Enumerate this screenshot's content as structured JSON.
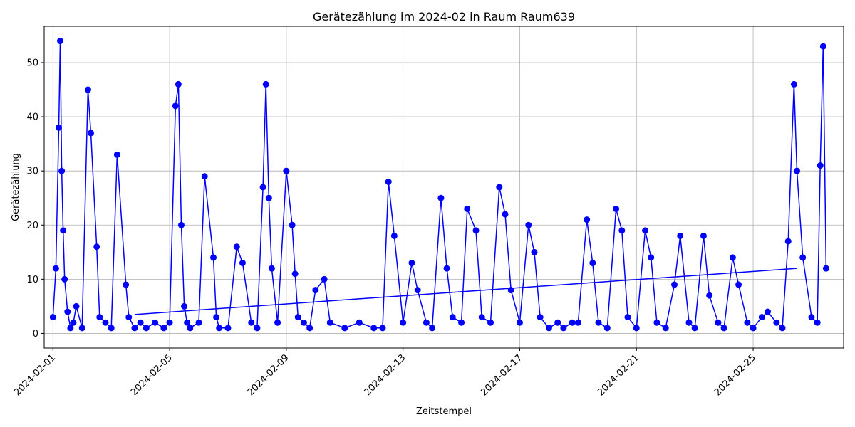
{
  "chart_data": {
    "type": "line",
    "title": "Gerätezählung im 2024-02 in Raum Raum639",
    "xlabel": "Zeitstempel",
    "ylabel": "Gerätezählung",
    "x_tick_labels": [
      "2024-02-01",
      "2024-02-05",
      "2024-02-09",
      "2024-02-13",
      "2024-02-17",
      "2024-02-21",
      "2024-02-25"
    ],
    "x_tick_days": [
      1,
      5,
      9,
      13,
      17,
      21,
      25
    ],
    "xlim_days": [
      0.7,
      28.1
    ],
    "y_ticks": [
      0,
      10,
      20,
      30,
      40,
      50
    ],
    "ylim": [
      -2.7,
      56.7
    ],
    "grid": true,
    "line_color": "#0000ff",
    "marker": "circle",
    "series": [
      {
        "x_day": [
          1.0,
          1.1,
          1.2,
          1.25,
          1.3,
          1.35,
          1.4,
          1.5,
          1.6,
          1.7,
          1.8,
          2.0,
          2.2,
          2.3,
          2.5,
          2.6,
          2.8,
          3.0,
          3.2,
          3.5,
          3.6,
          3.8,
          4.0,
          4.2,
          4.5,
          4.8,
          5.0,
          5.2,
          5.3,
          5.4,
          5.5,
          5.6,
          5.7,
          6.0,
          6.2,
          6.5,
          6.6,
          6.7,
          7.0,
          7.3,
          7.5,
          7.8,
          8.0,
          8.2,
          8.3,
          8.4,
          8.5,
          8.7,
          9.0,
          9.2,
          9.3,
          9.4,
          9.6,
          9.8,
          10.0,
          10.3,
          10.5,
          11.0,
          11.5,
          12.0,
          12.3,
          12.5,
          12.7,
          13.0,
          13.3,
          13.5,
          13.8,
          14.0,
          14.3,
          14.5,
          14.7,
          15.0,
          15.2,
          15.5,
          15.7,
          16.0,
          16.3,
          16.5,
          16.7,
          17.0,
          17.3,
          17.5,
          17.7,
          18.0,
          18.3,
          18.5,
          18.8,
          19.0,
          19.3,
          19.5,
          19.7,
          20.0,
          20.3,
          20.5,
          20.7,
          21.0,
          21.3,
          21.5,
          21.7,
          22.0,
          22.3,
          22.5,
          22.8,
          23.0,
          23.3,
          23.5,
          23.8,
          24.0,
          24.3,
          24.5,
          24.8,
          25.0,
          25.3,
          25.5,
          25.8,
          26.0,
          26.2,
          26.4,
          26.5,
          26.7,
          27.0,
          27.2,
          27.3,
          27.4,
          27.5
        ],
        "y": [
          3,
          12,
          38,
          54,
          30,
          19,
          10,
          4,
          1,
          2,
          5,
          1,
          45,
          37,
          16,
          3,
          2,
          1,
          33,
          9,
          3,
          1,
          2,
          1,
          2,
          1,
          2,
          42,
          46,
          20,
          5,
          2,
          1,
          2,
          29,
          14,
          3,
          1,
          1,
          16,
          13,
          2,
          1,
          27,
          46,
          25,
          12,
          2,
          30,
          20,
          11,
          3,
          2,
          1,
          8,
          10,
          2,
          1,
          2,
          1,
          1,
          28,
          18,
          2,
          13,
          8,
          2,
          1,
          25,
          12,
          3,
          2,
          23,
          19,
          3,
          2,
          27,
          22,
          8,
          2,
          20,
          15,
          3,
          1,
          2,
          1,
          2,
          2,
          21,
          13,
          2,
          1,
          23,
          19,
          3,
          1,
          19,
          14,
          2,
          1,
          9,
          18,
          2,
          1,
          18,
          7,
          2,
          1,
          14,
          9,
          2,
          1,
          3,
          4,
          2,
          1,
          17,
          46,
          30,
          14,
          3,
          2,
          31,
          53,
          12
        ]
      }
    ],
    "connector_segments": [
      {
        "x_day": [
          3.8,
          26.5
        ],
        "y": [
          3.5,
          12
        ]
      }
    ]
  }
}
